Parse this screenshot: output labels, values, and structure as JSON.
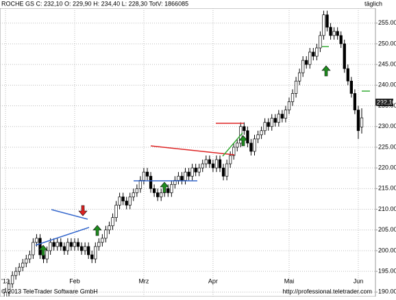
{
  "chart_data": {
    "type": "candlestick",
    "title": "ROCHE GS C: 232,10 O: 229,90 H: 234,40 L: 228,30 TotV: 1866085",
    "subtitle": "täglich",
    "last_label": "232,10",
    "footer_left": "© 2013 TeleTrader Software GmbH",
    "footer_right": "http://professional.teletrader.com",
    "categories": [
      "'13",
      null,
      null,
      null,
      null,
      null,
      null,
      null,
      null,
      null,
      null,
      null,
      null,
      null,
      null,
      null,
      null,
      null,
      null,
      null,
      "Feb",
      null,
      null,
      null,
      null,
      null,
      null,
      null,
      null,
      null,
      null,
      null,
      null,
      null,
      null,
      null,
      null,
      null,
      null,
      null,
      "Mrz",
      null,
      null,
      null,
      null,
      null,
      null,
      null,
      null,
      null,
      null,
      null,
      null,
      null,
      null,
      null,
      null,
      null,
      null,
      null,
      "Apr",
      null,
      null,
      null,
      null,
      null,
      null,
      null,
      null,
      null,
      null,
      null,
      null,
      null,
      null,
      null,
      null,
      null,
      null,
      null,
      null,
      null,
      "Mai",
      null,
      null,
      null,
      null,
      null,
      null,
      null,
      null,
      null,
      null,
      null,
      null,
      null,
      null,
      null,
      null,
      null,
      null,
      null,
      "Jun",
      null
    ],
    "open": [
      188,
      190,
      192,
      194,
      195,
      196,
      197,
      198,
      199,
      202,
      203,
      199,
      198,
      200,
      202,
      201,
      202,
      201,
      200,
      202,
      201,
      202,
      201,
      200,
      201,
      199,
      198,
      201,
      202,
      203,
      205,
      206,
      208,
      211,
      213,
      212,
      211,
      213,
      214,
      215,
      217,
      219,
      218,
      215,
      214,
      213,
      214,
      215,
      214,
      216,
      217,
      218,
      217,
      219,
      218,
      220,
      219,
      220,
      221,
      222,
      221,
      220,
      222,
      220,
      218,
      221,
      223,
      225,
      226,
      230,
      229,
      226,
      224,
      227,
      228,
      229,
      231,
      230,
      232,
      231,
      233,
      232,
      234,
      236,
      238,
      241,
      243,
      246,
      245,
      248,
      247,
      249,
      252,
      257,
      254,
      252,
      253,
      252,
      250,
      244,
      241,
      238,
      234,
      229.9
    ],
    "high": [
      191,
      193,
      195,
      196,
      197,
      198,
      199,
      200,
      203,
      204,
      204,
      200,
      201,
      203,
      203,
      203,
      203,
      202,
      203,
      203,
      203,
      203,
      202,
      202,
      202,
      200,
      202,
      203,
      204,
      206,
      207,
      209,
      212,
      214,
      214,
      213,
      214,
      215,
      216,
      218,
      220,
      220,
      219,
      216,
      215,
      215,
      216,
      216,
      217,
      218,
      219,
      219,
      220,
      220,
      221,
      221,
      221,
      222,
      223,
      223,
      222,
      223,
      223,
      221,
      222,
      224,
      226,
      227,
      231,
      231,
      230,
      227,
      228,
      229,
      230,
      232,
      232,
      233,
      233,
      234,
      234,
      235,
      237,
      239,
      242,
      244,
      247,
      247,
      249,
      249,
      250,
      253,
      258,
      258,
      255,
      254,
      254,
      253,
      251,
      245,
      242,
      239,
      235,
      234.4
    ],
    "low": [
      187,
      189,
      191,
      193,
      194,
      195,
      196,
      197,
      198,
      201,
      198,
      197,
      197,
      199,
      200,
      200,
      200,
      199,
      199,
      200,
      200,
      200,
      199,
      199,
      198,
      197,
      197,
      200,
      201,
      202,
      204,
      205,
      207,
      210,
      211,
      210,
      210,
      212,
      213,
      214,
      216,
      217,
      214,
      213,
      212,
      212,
      213,
      213,
      213,
      215,
      216,
      216,
      216,
      217,
      217,
      218,
      218,
      219,
      220,
      220,
      219,
      219,
      219,
      217,
      217,
      220,
      222,
      224,
      225,
      228,
      225,
      223,
      223,
      226,
      227,
      228,
      229,
      229,
      230,
      230,
      231,
      231,
      233,
      235,
      237,
      240,
      242,
      244,
      244,
      246,
      246,
      248,
      251,
      253,
      251,
      251,
      251,
      249,
      243,
      240,
      237,
      233,
      227,
      228.3
    ],
    "close": [
      190,
      192,
      194,
      195,
      196,
      197,
      198,
      199,
      202,
      203,
      199,
      198,
      200,
      202,
      201,
      202,
      201,
      200,
      202,
      201,
      202,
      201,
      200,
      201,
      199,
      198,
      201,
      202,
      203,
      205,
      206,
      208,
      211,
      213,
      212,
      211,
      213,
      214,
      215,
      217,
      219,
      218,
      215,
      214,
      213,
      214,
      215,
      214,
      216,
      217,
      218,
      217,
      219,
      218,
      220,
      219,
      220,
      221,
      222,
      221,
      220,
      222,
      220,
      218,
      221,
      223,
      225,
      226,
      230,
      229,
      226,
      224,
      227,
      228,
      229,
      231,
      230,
      232,
      231,
      233,
      232,
      234,
      236,
      238,
      241,
      243,
      246,
      245,
      248,
      247,
      249,
      252,
      257,
      254,
      252,
      253,
      252,
      250,
      244,
      241,
      238,
      234,
      229,
      232.1
    ],
    "ylim": [
      188.9,
      258.6
    ],
    "yticks": [
      {
        "value": 190,
        "label": "190.00"
      },
      {
        "value": 195,
        "label": "195.00"
      },
      {
        "value": 200,
        "label": "200.00"
      },
      {
        "value": 205,
        "label": "205.00"
      },
      {
        "value": 210,
        "label": "210.00"
      },
      {
        "value": 215,
        "label": "215.00"
      },
      {
        "value": 220,
        "label": "220.00"
      },
      {
        "value": 225,
        "label": "225.00"
      },
      {
        "value": 230,
        "label": "230.00"
      },
      {
        "value": 235,
        "label": "235.00"
      },
      {
        "value": 240,
        "label": "240.00"
      },
      {
        "value": 245,
        "label": "245.00"
      },
      {
        "value": 250,
        "label": "250.00"
      },
      {
        "value": 255,
        "label": "255.00"
      }
    ],
    "grid": true,
    "up_color": "#ffffff",
    "down_color": "#000000"
  }
}
